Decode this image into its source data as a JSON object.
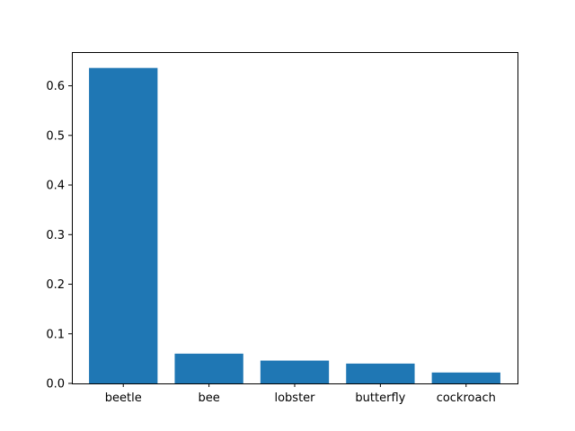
{
  "chart_data": {
    "type": "bar",
    "categories": [
      "beetle",
      "bee",
      "lobster",
      "butterfly",
      "cockroach"
    ],
    "values": [
      0.636,
      0.06,
      0.046,
      0.04,
      0.022
    ],
    "title": "",
    "xlabel": "",
    "ylabel": "",
    "ylim": [
      0,
      0.668
    ],
    "yticks": [
      0.0,
      0.1,
      0.2,
      0.3,
      0.4,
      0.5,
      0.6
    ],
    "ytick_labels": [
      "0.0",
      "0.1",
      "0.2",
      "0.3",
      "0.4",
      "0.5",
      "0.6"
    ],
    "grid": false,
    "legend": "none",
    "bar_color": "#1f77b4"
  }
}
